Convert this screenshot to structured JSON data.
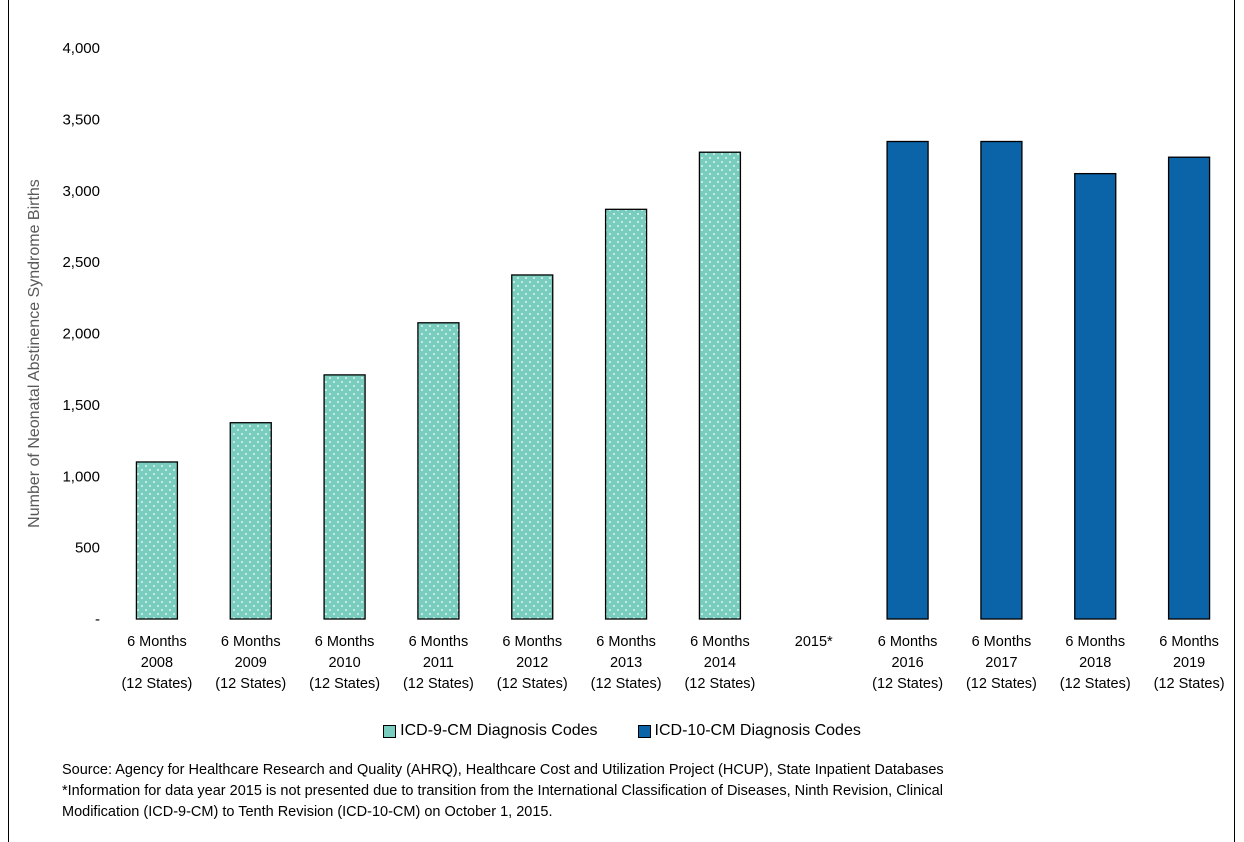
{
  "chart_data": {
    "type": "bar",
    "ylabel": "Number of Neonatal Abstinence Syndrome Births",
    "ylim": [
      0,
      4000
    ],
    "y_ticks": [
      {
        "value": 0,
        "label": "-"
      },
      {
        "value": 500,
        "label": "500"
      },
      {
        "value": 1000,
        "label": "1,000"
      },
      {
        "value": 1500,
        "label": "1,500"
      },
      {
        "value": 2000,
        "label": "2,000"
      },
      {
        "value": 2500,
        "label": "2,500"
      },
      {
        "value": 3000,
        "label": "3,000"
      },
      {
        "value": 3500,
        "label": "3,500"
      },
      {
        "value": 4000,
        "label": "4,000"
      }
    ],
    "grid": false,
    "legend_position": "bottom",
    "categories": [
      [
        "6 Months",
        "2008",
        "(12 States)"
      ],
      [
        "6 Months",
        "2009",
        "(12 States)"
      ],
      [
        "6 Months",
        "2010",
        "(12 States)"
      ],
      [
        "6 Months",
        "2011",
        "(12 States)"
      ],
      [
        "6 Months",
        "2012",
        "(12 States)"
      ],
      [
        "6 Months",
        "2013",
        "(12 States)"
      ],
      [
        "6 Months",
        "2014",
        "(12 States)"
      ],
      [
        "2015*"
      ],
      [
        "6 Months",
        "2016",
        "(12 States)"
      ],
      [
        "6 Months",
        "2017",
        "(12 States)"
      ],
      [
        "6 Months",
        "2018",
        "(12 States)"
      ],
      [
        "6 Months",
        "2019",
        "(12 States)"
      ]
    ],
    "series": [
      {
        "name": "ICD-9-CM Diagnosis Codes",
        "color": "#79cdbf",
        "pattern": "dotted",
        "values": [
          1100,
          1375,
          1710,
          2075,
          2410,
          2870,
          3270,
          null,
          null,
          null,
          null,
          null
        ]
      },
      {
        "name": "ICD-10-CM Diagnosis Codes",
        "color": "#0b64a8",
        "pattern": "solid",
        "values": [
          null,
          null,
          null,
          null,
          null,
          null,
          null,
          null,
          3345,
          3345,
          3120,
          3235
        ]
      }
    ]
  },
  "notes": {
    "source": "Source: Agency for Healthcare Research and Quality (AHRQ), Healthcare Cost and Utilization Project (HCUP), State Inpatient Databases",
    "footnote_line1": "*Information for data year 2015 is not presented due to transition from the International Classification of Diseases, Ninth Revision, Clinical",
    "footnote_line2": "Modification (ICD-9-CM) to Tenth Revision (ICD-10-CM) on October 1, 2015."
  }
}
